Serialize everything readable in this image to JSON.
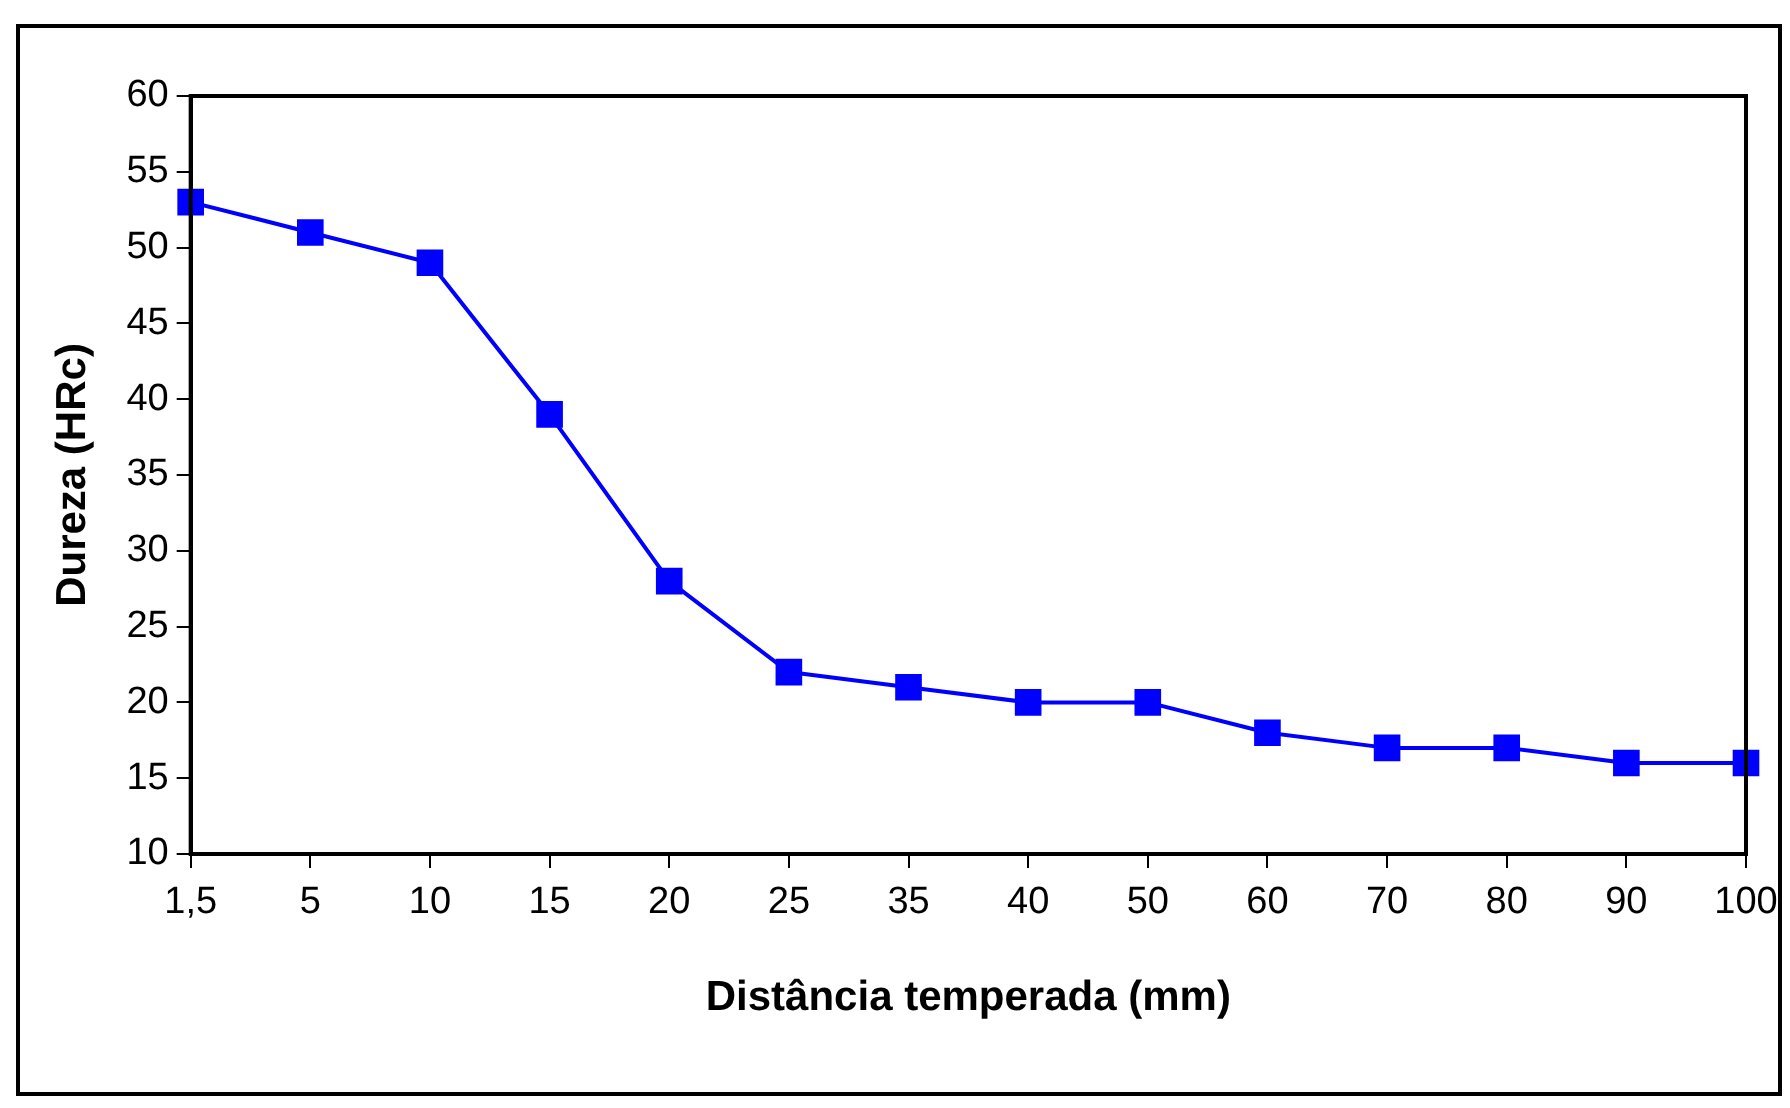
{
  "chart_data": {
    "type": "line",
    "xlabel": "Distância temperada (mm)",
    "ylabel": "Dureza (HRc)",
    "categories": [
      "1,5",
      "5",
      "10",
      "15",
      "20",
      "25",
      "35",
      "40",
      "50",
      "60",
      "70",
      "80",
      "90",
      "100"
    ],
    "series": [
      {
        "color": "#0000ff",
        "values": [
          53,
          51,
          49,
          39,
          28,
          22,
          21,
          20,
          20,
          18,
          17,
          17,
          16,
          16
        ]
      }
    ],
    "ylim": [
      10,
      60
    ],
    "yticks": [
      10,
      15,
      20,
      25,
      30,
      35,
      40,
      45,
      50,
      55,
      60
    ],
    "grid": false,
    "marker": "square",
    "line_style": "solid"
  }
}
